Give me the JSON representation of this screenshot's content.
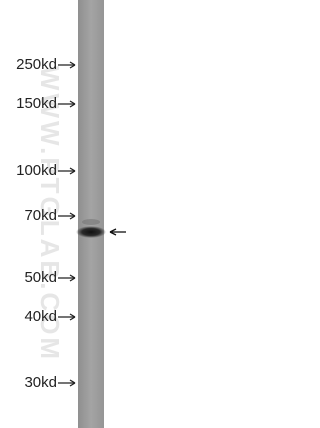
{
  "markers": [
    "250kd",
    "150kd",
    "100kd",
    "70kd",
    "50kd",
    "40kd",
    "30kd"
  ],
  "watermark": "WWW.PTGLAB.COM"
}
